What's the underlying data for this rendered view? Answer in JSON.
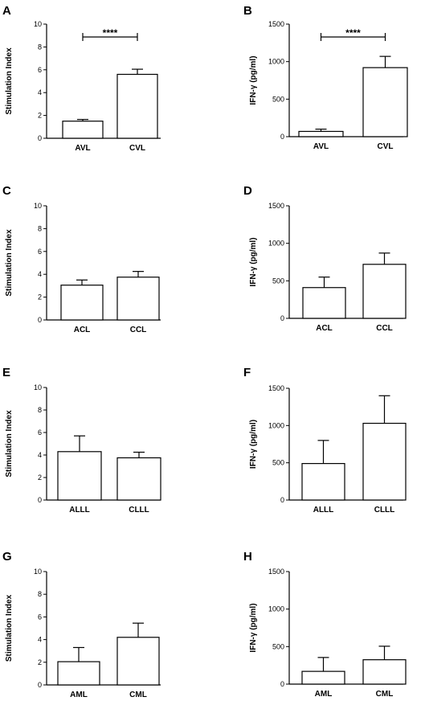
{
  "chart_data": [
    {
      "panel": "A",
      "type": "bar",
      "ylabel": "Stimulation Index",
      "categories": [
        "AVL",
        "CVL"
      ],
      "values": [
        1.5,
        5.6
      ],
      "errors": [
        0.15,
        0.45
      ],
      "ylim": [
        0,
        10
      ],
      "yticks": [
        "0",
        "2",
        "4",
        "6",
        "8",
        "10"
      ],
      "significance": "****",
      "grid": false
    },
    {
      "panel": "B",
      "type": "bar",
      "ylabel": "IFN-γ (pg/ml)",
      "categories": [
        "AVL",
        "CVL"
      ],
      "values": [
        70,
        920
      ],
      "errors": [
        30,
        150
      ],
      "ylim": [
        0,
        1500
      ],
      "yticks": [
        "0",
        "500",
        "1000",
        "1500"
      ],
      "significance": "****",
      "grid": false
    },
    {
      "panel": "C",
      "type": "bar",
      "ylabel": "Stimulation Index",
      "categories": [
        "ACL",
        "CCL"
      ],
      "values": [
        3.05,
        3.75
      ],
      "errors": [
        0.45,
        0.5
      ],
      "ylim": [
        0,
        10
      ],
      "yticks": [
        "0",
        "2",
        "4",
        "6",
        "8",
        "10"
      ],
      "significance": "",
      "grid": false
    },
    {
      "panel": "D",
      "type": "bar",
      "ylabel": "IFN-γ (pg/ml)",
      "categories": [
        "ACL",
        "CCL"
      ],
      "values": [
        410,
        720
      ],
      "errors": [
        140,
        150
      ],
      "ylim": [
        0,
        1500
      ],
      "yticks": [
        "0",
        "500",
        "1000",
        "1500"
      ],
      "significance": "",
      "grid": false
    },
    {
      "panel": "E",
      "type": "bar",
      "ylabel": "Stimulation Index",
      "categories": [
        "ALLL",
        "CLLL"
      ],
      "values": [
        4.3,
        3.75
      ],
      "errors": [
        1.4,
        0.5
      ],
      "ylim": [
        0,
        10
      ],
      "yticks": [
        "0",
        "2",
        "4",
        "6",
        "8",
        "10"
      ],
      "significance": "",
      "grid": false
    },
    {
      "panel": "F",
      "type": "bar",
      "ylabel": "IFN-γ (pg/ml)",
      "categories": [
        "ALLL",
        "CLLL"
      ],
      "values": [
        490,
        1030
      ],
      "errors": [
        310,
        370
      ],
      "ylim": [
        0,
        1500
      ],
      "yticks": [
        "0",
        "500",
        "1000",
        "1500"
      ],
      "significance": "",
      "grid": false
    },
    {
      "panel": "G",
      "type": "bar",
      "ylabel": "Stimulation Index",
      "categories": [
        "AML",
        "CML"
      ],
      "values": [
        2.05,
        4.2
      ],
      "errors": [
        1.25,
        1.25
      ],
      "ylim": [
        0,
        10
      ],
      "yticks": [
        "0",
        "2",
        "4",
        "6",
        "8",
        "10"
      ],
      "significance": "",
      "grid": false
    },
    {
      "panel": "H",
      "type": "bar",
      "ylabel": "IFN-γ (pg/ml)",
      "categories": [
        "AML",
        "CML"
      ],
      "values": [
        170,
        325
      ],
      "errors": [
        185,
        180
      ],
      "ylim": [
        0,
        1500
      ],
      "yticks": [
        "0",
        "500",
        "1000",
        "1500"
      ],
      "significance": "",
      "grid": false
    }
  ]
}
